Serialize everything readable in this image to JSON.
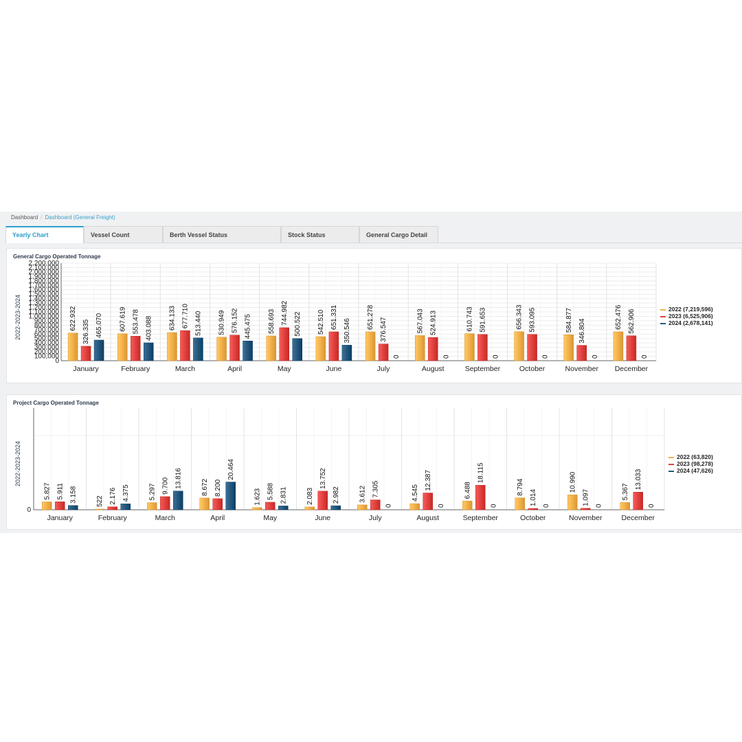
{
  "breadcrumb": {
    "home": "Dashboard",
    "current": "Dashboard (General Freight)"
  },
  "tabs": [
    {
      "label": "Yearly Chart",
      "active": true
    },
    {
      "label": "Vessel Count",
      "active": false
    },
    {
      "label": "Berth Vessel Status",
      "active": false
    },
    {
      "label": "Stock Status",
      "active": false
    },
    {
      "label": "General Cargo Detail",
      "active": false
    }
  ],
  "colors": {
    "2022": "#f2b04a",
    "2023": "#e0423f",
    "2024": "#24577d",
    "accent": "#2aa0cc"
  },
  "chart_data": [
    {
      "type": "bar",
      "title": "General Cargo Operated Tonnage",
      "ylabel": "2022-2023-2024",
      "ylim": [
        0,
        2200000
      ],
      "yticks": [
        "0",
        "100,000",
        "200,000",
        "300,000",
        "400,000",
        "500,000",
        "600,000",
        "700,000",
        "800,000",
        "900,000",
        "1,000,000",
        "1,100,000",
        "1,200,000",
        "1,300,000",
        "1,400,000",
        "1,500,000",
        "1,600,000",
        "1,700,000",
        "1,800,000",
        "1,900,000",
        "2,000,000",
        "2,100,000",
        "2,200,000"
      ],
      "categories": [
        "January",
        "February",
        "March",
        "April",
        "May",
        "June",
        "July",
        "August",
        "September",
        "October",
        "November",
        "December"
      ],
      "series": [
        {
          "name": "2022 (7,219,596)",
          "year": "2022",
          "values": [
            622932,
            607619,
            634133,
            530949,
            558693,
            542510,
            651278,
            567043,
            610743,
            656343,
            584877,
            652476
          ],
          "labels": [
            "622.932",
            "607.619",
            "634.133",
            "530.949",
            "558.693",
            "542.510",
            "651.278",
            "567.043",
            "610.743",
            "656.343",
            "584.877",
            "652.476"
          ]
        },
        {
          "name": "2023 (6,525,906)",
          "year": "2023",
          "values": [
            326335,
            553478,
            677710,
            576152,
            744982,
            651331,
            376547,
            524913,
            591653,
            593095,
            346804,
            562906
          ],
          "labels": [
            "326.335",
            "553.478",
            "677.710",
            "576.152",
            "744.982",
            "651.331",
            "376.547",
            "524.913",
            "591.653",
            "593.095",
            "346.804",
            "562.906"
          ]
        },
        {
          "name": "2024 (2,678,141)",
          "year": "2024",
          "values": [
            465070,
            403088,
            513440,
            445475,
            500522,
            350546,
            0,
            0,
            0,
            0,
            0,
            0
          ],
          "labels": [
            "465.070",
            "403.088",
            "513.440",
            "445.475",
            "500.522",
            "350.546",
            "0",
            "0",
            "0",
            "0",
            "0",
            "0"
          ]
        }
      ]
    },
    {
      "type": "bar",
      "title": "Project Cargo Operated Tonnage",
      "ylabel": "2022-2023-2024",
      "ylim": [
        0,
        75000
      ],
      "yticks": [
        "0"
      ],
      "categories": [
        "January",
        "February",
        "March",
        "April",
        "May",
        "June",
        "July",
        "August",
        "September",
        "October",
        "November",
        "December"
      ],
      "series": [
        {
          "name": "2022 (63,820)",
          "year": "2022",
          "values": [
            5827,
            522,
            5297,
            8672,
            1623,
            2083,
            3612,
            4545,
            6488,
            8794,
            10990,
            5367
          ],
          "labels": [
            "5.827",
            "522",
            "5.297",
            "8.672",
            "1.623",
            "2.083",
            "3.612",
            "4.545",
            "6.488",
            "8.794",
            "10.990",
            "5.367"
          ]
        },
        {
          "name": "2023 (98,278)",
          "year": "2023",
          "values": [
            5911,
            2176,
            9700,
            8200,
            5588,
            13752,
            7305,
            12387,
            18115,
            1014,
            1097,
            13033
          ],
          "labels": [
            "5.911",
            "2.176",
            "9.700",
            "8.200",
            "5.588",
            "13.752",
            "7.305",
            "12.387",
            "18.115",
            "1.014",
            "1.097",
            "13.033"
          ]
        },
        {
          "name": "2024 (47,626)",
          "year": "2024",
          "values": [
            3158,
            4375,
            13816,
            20464,
            2831,
            2982,
            0,
            0,
            0,
            0,
            0,
            0
          ],
          "labels": [
            "3.158",
            "4.375",
            "13.816",
            "20.464",
            "2.831",
            "2.982",
            "0",
            "0",
            "0",
            "0",
            "0",
            "0"
          ]
        }
      ]
    }
  ]
}
